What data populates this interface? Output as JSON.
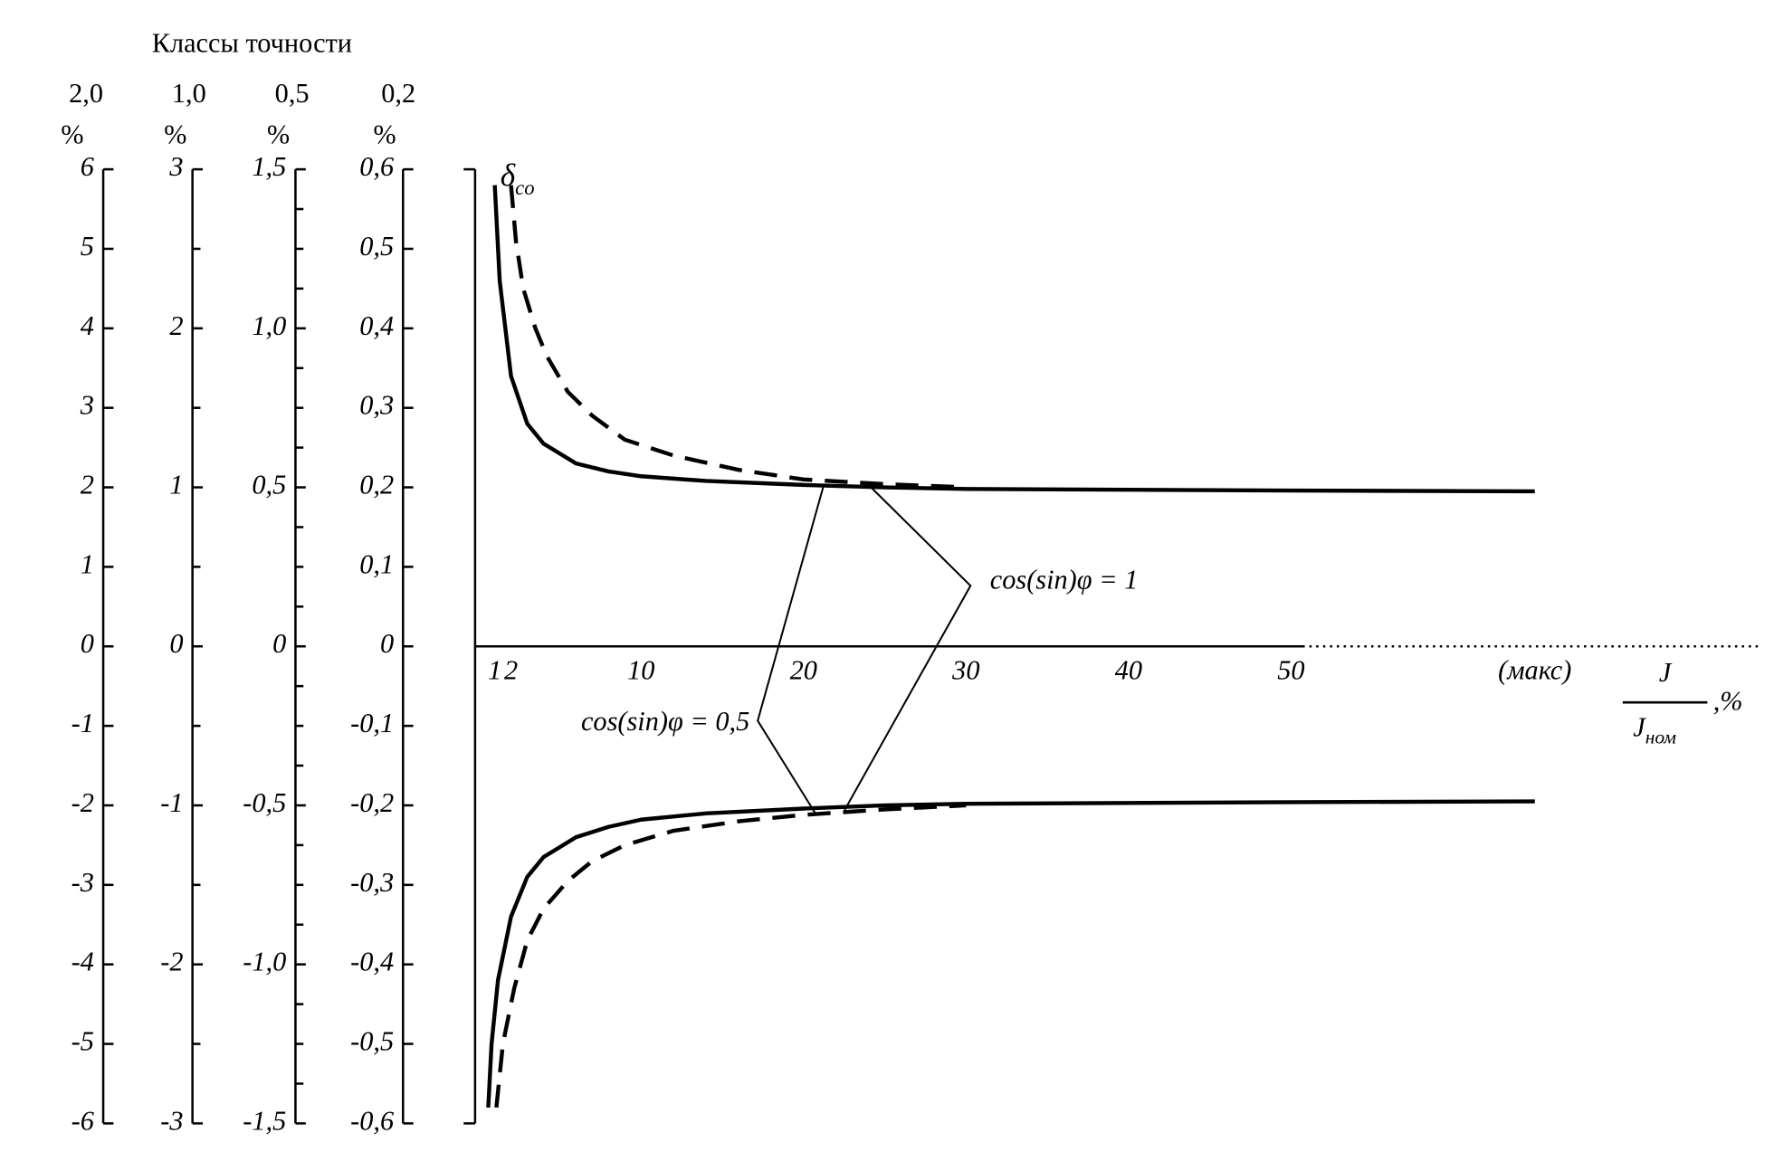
{
  "chart_data": {
    "type": "line",
    "title": "Классы точности",
    "y_label": {
      "main": "δ",
      "sub": "co"
    },
    "x_label": {
      "numerator": "J",
      "denominator": "J",
      "denominator_sub": "ном",
      "unit": ",%"
    },
    "y_axes": [
      {
        "header": "2,0",
        "unit": "%",
        "ylim": [
          -6,
          6
        ],
        "yticks": [
          6,
          5,
          4,
          3,
          2,
          1,
          0,
          -1,
          -2,
          -3,
          -4,
          -5,
          -6
        ],
        "yminorticks": []
      },
      {
        "header": "1,0",
        "unit": "%",
        "ylim": [
          -3,
          3
        ],
        "yticks": [
          3,
          2,
          1,
          0,
          -1,
          -2,
          -3
        ],
        "yminorticks": [
          2.5,
          1.5,
          0.5,
          -0.5,
          -1.5,
          -2.5
        ]
      },
      {
        "header": "0,5",
        "unit": "%",
        "ylim": [
          -1.5,
          1.5
        ],
        "yticks": [
          {
            "value": 1.5,
            "label": "1,5"
          },
          {
            "value": 1.0,
            "label": "1,0"
          },
          {
            "value": 0.5,
            "label": "0,5"
          },
          0,
          {
            "value": -0.5,
            "label": "-0,5"
          },
          {
            "value": -1.0,
            "label": "-1,0"
          },
          {
            "value": -1.5,
            "label": "-1,5"
          }
        ],
        "yminorticks": [
          1.375,
          1.25,
          1.125,
          0.875,
          0.75,
          0.625,
          0.375,
          0.25,
          0.125,
          -0.125,
          -0.25,
          -0.375,
          -0.625,
          -0.75,
          -0.875,
          -1.125,
          -1.25,
          -1.375
        ]
      },
      {
        "header": "0,2",
        "unit": "%",
        "ylim": [
          -0.6,
          0.6
        ],
        "yticks": [
          {
            "value": 0.6,
            "label": "0,6"
          },
          {
            "value": 0.5,
            "label": "0,5"
          },
          {
            "value": 0.4,
            "label": "0,4"
          },
          {
            "value": 0.3,
            "label": "0,3"
          },
          {
            "value": 0.2,
            "label": "0,2"
          },
          {
            "value": 0.1,
            "label": "0,1"
          },
          0,
          {
            "value": -0.1,
            "label": "-0,1"
          },
          {
            "value": -0.2,
            "label": "-0,2"
          },
          {
            "value": -0.3,
            "label": "-0,3"
          },
          {
            "value": -0.4,
            "label": "-0,4"
          },
          {
            "value": -0.5,
            "label": "-0,5"
          },
          {
            "value": -0.6,
            "label": "-0,6"
          }
        ],
        "yminorticks": []
      }
    ],
    "xlim": [
      0,
      79
    ],
    "xticks": [
      1,
      2,
      10,
      20,
      30,
      40,
      50,
      {
        "value": 65,
        "label": "(макс)"
      }
    ],
    "series": [
      {
        "color": "#000000",
        "dash": false,
        "x": [
          1,
          1.3,
          2,
          3,
          4,
          6,
          8,
          10,
          14,
          20,
          25,
          30,
          40,
          50,
          65
        ],
        "values": [
          5.8,
          4.6,
          3.4,
          2.8,
          2.55,
          2.3,
          2.2,
          2.14,
          2.08,
          2.03,
          2.0,
          1.98,
          1.97,
          1.96,
          1.95
        ]
      },
      {
        "color": "#000000",
        "dash": true,
        "x": [
          2,
          2.3,
          2.75,
          3.5,
          4.2,
          5.5,
          7,
          9,
          12,
          16,
          20,
          25,
          30
        ],
        "values": [
          5.8,
          5.1,
          4.5,
          4.0,
          3.65,
          3.2,
          2.9,
          2.6,
          2.4,
          2.22,
          2.1,
          2.04,
          2.0
        ]
      },
      {
        "color": "#000000",
        "dash": false,
        "x": [
          0.6,
          0.8,
          1.2,
          2,
          3,
          4,
          6,
          8,
          10,
          14,
          20,
          25,
          30,
          40,
          50,
          65
        ],
        "values": [
          -5.8,
          -5.0,
          -4.2,
          -3.4,
          -2.9,
          -2.65,
          -2.4,
          -2.27,
          -2.18,
          -2.1,
          -2.04,
          -2.0,
          -1.98,
          -1.97,
          -1.96,
          -1.95
        ]
      },
      {
        "color": "#000000",
        "dash": true,
        "x": [
          1.1,
          1.5,
          2.2,
          3,
          4,
          5.5,
          7,
          9,
          12,
          16,
          20,
          25,
          30
        ],
        "values": [
          -5.8,
          -5.0,
          -4.3,
          -3.7,
          -3.3,
          -2.95,
          -2.7,
          -2.5,
          -2.32,
          -2.2,
          -2.12,
          -2.05,
          -2.0
        ]
      }
    ],
    "annotations": [
      "cos(sin)φ = 1",
      "cos(sin)φ = 0,5"
    ]
  }
}
